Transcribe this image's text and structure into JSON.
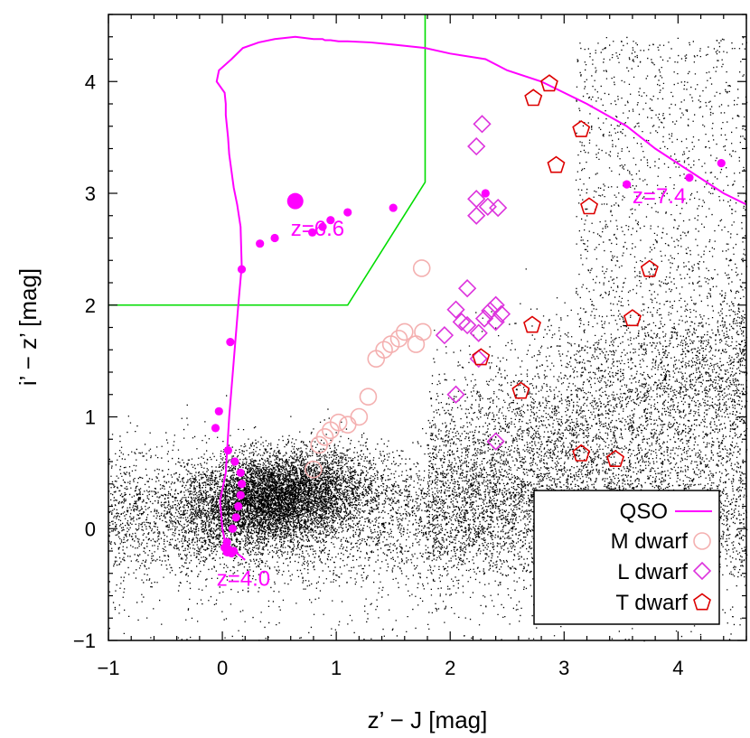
{
  "chart_data": {
    "type": "scatter",
    "xlabel": "z’ − J [mag]",
    "ylabel": "i’ − z’ [mag]",
    "xlim": [
      -1,
      4.6
    ],
    "ylim": [
      -1,
      4.6
    ],
    "xticks": [
      -1,
      0,
      1,
      2,
      3,
      4
    ],
    "yticks": [
      -1,
      0,
      1,
      2,
      3,
      4
    ],
    "xtick_labels": [
      "−1",
      "0",
      "1",
      "2",
      "3",
      "4"
    ],
    "ytick_labels": [
      "−1",
      "0",
      "1",
      "2",
      "3",
      "4"
    ],
    "colors": {
      "qso": "#ff00ff",
      "selection": "#00dd00",
      "m_dwarf": "#f4b0b0",
      "l_dwarf": "#dd33dd",
      "t_dwarf": "#dd0000",
      "field": "#000000"
    },
    "selection_boundary": {
      "x": [
        -1,
        1.1,
        1.78,
        1.78
      ],
      "y": [
        2.0,
        2.0,
        3.1,
        4.6
      ]
    },
    "qso_track": {
      "x": [
        0.2,
        0.13,
        0.11,
        0.09,
        0.07,
        0.06,
        0.04,
        0.02,
        0.0,
        -0.02,
        0.03,
        0.06,
        0.1,
        0.14,
        0.17,
        0.16,
        0.13,
        0.1,
        0.08,
        0.06,
        0.05,
        0.04,
        0.03,
        0.03,
        0.02,
        -0.05,
        -0.03,
        0.08,
        0.18,
        0.32,
        0.46,
        0.64,
        0.8,
        0.88,
        0.9,
        0.95,
        1.02,
        1.1,
        1.3,
        1.5,
        1.78,
        2.0,
        2.31,
        2.5,
        2.8,
        3.0,
        3.2,
        3.55,
        3.8,
        4.1,
        4.4,
        4.6
      ],
      "y": [
        -0.28,
        -0.22,
        -0.2,
        -0.19,
        -0.18,
        -0.16,
        -0.14,
        -0.1,
        0.0,
        0.25,
        0.5,
        1.0,
        1.5,
        2.0,
        2.35,
        2.7,
        2.9,
        3.05,
        3.2,
        3.35,
        3.5,
        3.6,
        3.7,
        3.8,
        3.9,
        4.0,
        4.1,
        4.2,
        4.3,
        4.35,
        4.38,
        4.4,
        4.38,
        4.38,
        4.37,
        4.37,
        4.36,
        4.36,
        4.35,
        4.33,
        4.3,
        4.25,
        4.2,
        4.1,
        4.0,
        3.9,
        3.8,
        3.6,
        3.4,
        3.2,
        3.0,
        2.9
      ],
      "marker_x": [
        0.02,
        0.05,
        0.08,
        0.04,
        0.1,
        0.05,
        0.04,
        0.09,
        0.12,
        0.14,
        0.16,
        0.17,
        0.16,
        0.11,
        0.05,
        -0.06,
        -0.03,
        0.07,
        0.17,
        0.33,
        0.46,
        0.79,
        0.88,
        0.95,
        1.1,
        1.5,
        2.31,
        3.55,
        4.1,
        4.38
      ],
      "marker_y": [
        -0.17,
        -0.21,
        -0.22,
        -0.21,
        -0.2,
        -0.18,
        -0.12,
        0.0,
        0.1,
        0.2,
        0.3,
        0.4,
        0.5,
        0.6,
        0.7,
        0.9,
        1.05,
        1.67,
        2.32,
        2.55,
        2.6,
        2.65,
        2.7,
        2.76,
        2.83,
        2.87,
        3.0,
        3.08,
        3.14,
        3.27
      ],
      "big_marker": {
        "x": 0.64,
        "y": 2.93
      }
    },
    "m_dwarfs": {
      "x": [
        0.8,
        0.85,
        0.9,
        0.95,
        1.02,
        1.1,
        1.2,
        1.28,
        1.35,
        1.42,
        1.48,
        1.55,
        1.6,
        1.7,
        1.76,
        1.75
      ],
      "y": [
        0.53,
        0.75,
        0.82,
        0.88,
        0.95,
        0.93,
        1.0,
        1.18,
        1.52,
        1.6,
        1.65,
        1.7,
        1.76,
        1.65,
        1.76,
        2.33
      ]
    },
    "l_dwarfs": {
      "x": [
        2.28,
        2.23,
        2.23,
        2.23,
        2.33,
        2.42,
        2.15,
        2.05,
        2.1,
        2.15,
        2.25,
        2.3,
        2.4,
        2.45,
        2.35,
        2.4,
        1.95,
        2.25,
        2.05,
        2.4
      ],
      "y": [
        3.62,
        3.42,
        2.95,
        2.8,
        2.88,
        2.87,
        2.15,
        1.96,
        1.85,
        1.82,
        1.75,
        1.88,
        2.0,
        1.92,
        1.95,
        1.85,
        1.73,
        1.52,
        1.2,
        0.78
      ]
    },
    "t_dwarfs": {
      "x": [
        2.87,
        2.73,
        3.15,
        2.93,
        3.22,
        3.75,
        3.6,
        2.72,
        2.27,
        2.62,
        3.15,
        3.45
      ],
      "y": [
        3.98,
        3.85,
        3.57,
        3.25,
        2.88,
        2.32,
        1.88,
        1.82,
        1.53,
        1.23,
        0.67,
        0.62
      ]
    },
    "annotations": [
      {
        "text": "z=6.6",
        "x": 0.6,
        "y": 2.62
      },
      {
        "text": "z=7.4",
        "x": 3.6,
        "y": 2.91
      },
      {
        "text": "z=4.0",
        "x": -0.05,
        "y": -0.51
      }
    ],
    "legend": {
      "position": "bottom-right",
      "entries": [
        {
          "label": "QSO",
          "marker": "line"
        },
        {
          "label": "M dwarf",
          "marker": "circle"
        },
        {
          "label": "L dwarf",
          "marker": "diamond"
        },
        {
          "label": "T dwarf",
          "marker": "pentagon"
        }
      ]
    }
  }
}
